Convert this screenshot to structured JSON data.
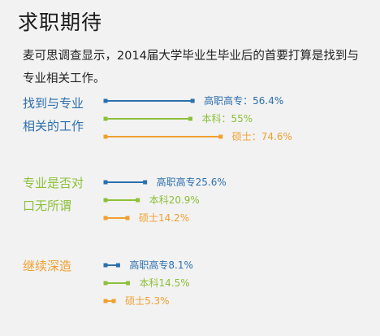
{
  "page": {
    "title": "求职期待",
    "intro": "麦可思调查显示，2014届大学毕业生毕业后的首要打算是找到与专业相关工作。"
  },
  "colors": {
    "高职高专": "#2c6fad",
    "本科": "#8dc03a",
    "硕士": "#f0a030"
  },
  "chart_data": {
    "type": "bar",
    "orientation": "horizontal",
    "xlim": [
      0,
      100
    ],
    "series_names": [
      "高职高专",
      "本科",
      "硕士"
    ],
    "groups": [
      {
        "label": "找到与专业相关的工作",
        "label_lines": [
          "找到与专业",
          "相关的工作"
        ],
        "label_color": "#2c6fad",
        "bars": [
          {
            "series": "高职高专",
            "value": 56.4,
            "text": "高职高专：56.4%"
          },
          {
            "series": "本科",
            "value": 55,
            "text": "本科：55%"
          },
          {
            "series": "硕士",
            "value": 74.6,
            "text": "硕士：74.6%"
          }
        ]
      },
      {
        "label": "专业是否对口无所谓",
        "label_lines": [
          "专业是否对",
          "口无所谓"
        ],
        "label_color": "#8dc03a",
        "bars": [
          {
            "series": "高职高专",
            "value": 25.6,
            "text": "高职高专25.6%"
          },
          {
            "series": "本科",
            "value": 20.9,
            "text": "本科20.9%"
          },
          {
            "series": "硕士",
            "value": 14.2,
            "text": "硕士14.2%"
          }
        ]
      },
      {
        "label": "继续深造",
        "label_lines": [
          "继续深造"
        ],
        "label_color": "#f0a030",
        "bars": [
          {
            "series": "高职高专",
            "value": 8.1,
            "text": "高职高专8.1%"
          },
          {
            "series": "本科",
            "value": 14.5,
            "text": "本科14.5%"
          },
          {
            "series": "硕士",
            "value": 5.3,
            "text": "硕士5.3%"
          }
        ]
      }
    ]
  }
}
